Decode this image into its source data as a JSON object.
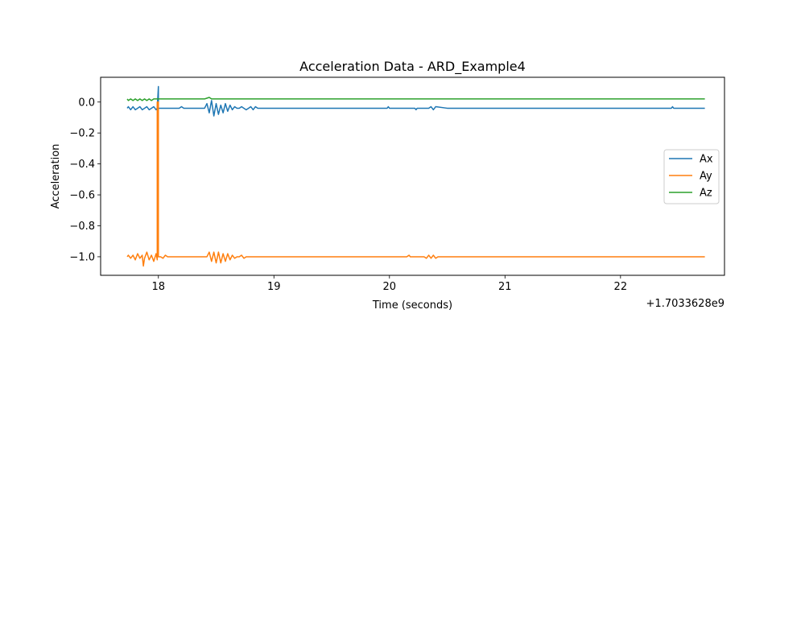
{
  "chart_data": {
    "type": "line",
    "title": "Acceleration Data - ARD_Example4",
    "xlabel": "Time (seconds)",
    "ylabel": "Acceleration",
    "x_offset_label": "+1.7033628e9",
    "xlim": [
      17.5,
      22.9
    ],
    "ylim": [
      -1.12,
      0.16
    ],
    "x_ticks": [
      18,
      19,
      20,
      21,
      22
    ],
    "x_tick_labels": [
      "18",
      "19",
      "20",
      "21",
      "22"
    ],
    "y_ticks": [
      0.0,
      -0.2,
      -0.4,
      -0.6,
      -0.8,
      -1.0
    ],
    "y_tick_labels": [
      "0.0",
      "−0.2",
      "−0.4",
      "−0.6",
      "−0.8",
      "−1.0"
    ],
    "grid": false,
    "legend_position": "center-right",
    "series": [
      {
        "name": "Ax",
        "color": "#1f77b4",
        "x": [
          17.73,
          17.74,
          17.76,
          17.78,
          17.8,
          17.82,
          17.84,
          17.86,
          17.88,
          17.9,
          17.92,
          17.94,
          17.96,
          17.98,
          17.99,
          18.0,
          18.0,
          18.02,
          18.06,
          18.1,
          18.14,
          18.18,
          18.2,
          18.22,
          18.3,
          18.38,
          18.4,
          18.42,
          18.44,
          18.46,
          18.48,
          18.5,
          18.52,
          18.54,
          18.56,
          18.58,
          18.6,
          18.62,
          18.64,
          18.66,
          18.68,
          18.7,
          18.72,
          18.74,
          18.76,
          18.78,
          18.8,
          18.82,
          18.84,
          18.86,
          18.9,
          19.2,
          19.6,
          19.98,
          19.99,
          20.0,
          20.1,
          20.22,
          20.23,
          20.24,
          20.26,
          20.3,
          20.34,
          20.36,
          20.38,
          20.4,
          20.5,
          21.0,
          21.5,
          22.0,
          22.44,
          22.45,
          22.46,
          22.5,
          22.73
        ],
        "y": [
          -0.04,
          -0.03,
          -0.05,
          -0.03,
          -0.05,
          -0.04,
          -0.03,
          -0.05,
          -0.04,
          -0.03,
          -0.05,
          -0.04,
          -0.03,
          -0.05,
          -0.04,
          0.1,
          -0.04,
          -0.04,
          -0.04,
          -0.04,
          -0.04,
          -0.04,
          -0.03,
          -0.04,
          -0.04,
          -0.04,
          -0.04,
          -0.01,
          -0.07,
          0.01,
          -0.09,
          -0.01,
          -0.08,
          -0.02,
          -0.07,
          -0.01,
          -0.06,
          -0.02,
          -0.05,
          -0.03,
          -0.04,
          -0.04,
          -0.03,
          -0.04,
          -0.05,
          -0.04,
          -0.03,
          -0.05,
          -0.03,
          -0.04,
          -0.04,
          -0.04,
          -0.04,
          -0.04,
          -0.03,
          -0.04,
          -0.04,
          -0.04,
          -0.05,
          -0.04,
          -0.04,
          -0.04,
          -0.04,
          -0.03,
          -0.05,
          -0.03,
          -0.04,
          -0.04,
          -0.04,
          -0.04,
          -0.04,
          -0.03,
          -0.04,
          -0.04,
          -0.04
        ]
      },
      {
        "name": "Ay",
        "color": "#ff7f0e",
        "x": [
          17.73,
          17.74,
          17.76,
          17.78,
          17.8,
          17.82,
          17.84,
          17.86,
          17.87,
          17.88,
          17.9,
          17.92,
          17.94,
          17.96,
          17.98,
          17.99,
          17.99,
          18.0,
          18.0,
          18.02,
          18.04,
          18.06,
          18.08,
          18.1,
          18.2,
          18.3,
          18.4,
          18.42,
          18.44,
          18.46,
          18.48,
          18.5,
          18.52,
          18.54,
          18.56,
          18.58,
          18.6,
          18.62,
          18.64,
          18.66,
          18.68,
          18.7,
          18.72,
          18.74,
          18.76,
          18.78,
          18.8,
          19.0,
          19.5,
          20.0,
          20.15,
          20.17,
          20.18,
          20.2,
          20.3,
          20.32,
          20.34,
          20.36,
          20.38,
          20.4,
          20.42,
          20.44,
          20.46,
          20.5,
          21.0,
          21.5,
          22.0,
          22.73
        ],
        "y": [
          -1.0,
          -0.99,
          -1.01,
          -0.99,
          -1.02,
          -0.98,
          -1.01,
          -0.99,
          -1.06,
          -1.01,
          -0.97,
          -1.02,
          -0.99,
          -1.03,
          -0.98,
          -1.02,
          0.0,
          0.0,
          -1.0,
          -1.0,
          -1.01,
          -0.99,
          -1.0,
          -1.0,
          -1.0,
          -1.0,
          -1.0,
          -1.0,
          -0.97,
          -1.03,
          -0.97,
          -1.04,
          -0.97,
          -1.04,
          -0.98,
          -1.03,
          -0.98,
          -1.02,
          -0.99,
          -1.01,
          -1.0,
          -1.0,
          -0.99,
          -1.01,
          -1.0,
          -1.0,
          -1.0,
          -1.0,
          -1.0,
          -1.0,
          -1.0,
          -0.99,
          -1.0,
          -1.0,
          -1.0,
          -1.01,
          -0.99,
          -1.01,
          -0.99,
          -1.01,
          -1.0,
          -1.0,
          -1.0,
          -1.0,
          -1.0,
          -1.0,
          -1.0,
          -1.0
        ]
      },
      {
        "name": "Az",
        "color": "#2ca02c",
        "x": [
          17.73,
          17.74,
          17.76,
          17.78,
          17.8,
          17.82,
          17.84,
          17.86,
          17.88,
          17.9,
          17.92,
          17.94,
          17.96,
          17.98,
          18.0,
          18.1,
          18.2,
          18.3,
          18.4,
          18.44,
          18.46,
          18.5,
          18.6,
          18.7,
          18.8,
          19.0,
          19.2,
          19.4,
          19.6,
          19.8,
          20.0,
          20.2,
          20.4,
          20.6,
          20.8,
          21.0,
          21.2,
          21.4,
          21.6,
          21.8,
          22.0,
          22.2,
          22.4,
          22.6,
          22.73
        ],
        "y": [
          0.02,
          0.01,
          0.02,
          0.01,
          0.02,
          0.01,
          0.02,
          0.01,
          0.02,
          0.01,
          0.02,
          0.01,
          0.02,
          0.02,
          0.02,
          0.02,
          0.02,
          0.02,
          0.02,
          0.03,
          0.02,
          0.02,
          0.02,
          0.02,
          0.02,
          0.02,
          0.02,
          0.02,
          0.02,
          0.02,
          0.02,
          0.02,
          0.02,
          0.02,
          0.02,
          0.02,
          0.02,
          0.02,
          0.02,
          0.02,
          0.02,
          0.02,
          0.02,
          0.02,
          0.02
        ]
      }
    ]
  }
}
